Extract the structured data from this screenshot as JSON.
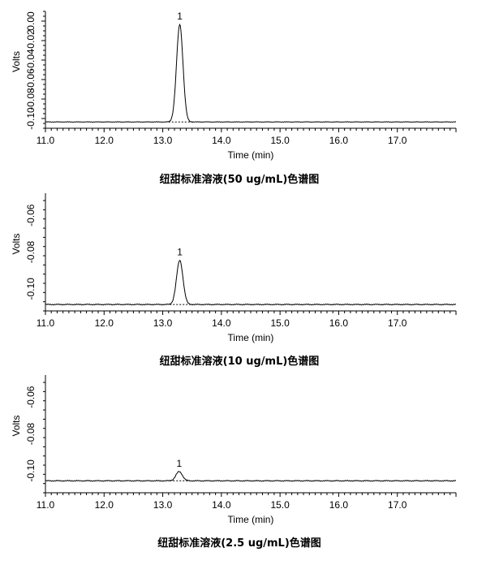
{
  "chart_data": [
    {
      "type": "line",
      "title": "纽甜标准溶液(50 ug/mL)色谱图",
      "xlabel": "Time (min)",
      "ylabel": "Volts",
      "xlim": [
        11.0,
        18.0
      ],
      "ylim": [
        -0.11,
        0.01
      ],
      "x_ticks": [
        11.0,
        12.0,
        13.0,
        14.0,
        15.0,
        16.0,
        17.0
      ],
      "x_tick_labels": [
        "11.0",
        "12.0",
        "13.0",
        "14.0",
        "15.0",
        "16.0",
        "17.0"
      ],
      "y_ticks": [
        -0.1,
        -0.08,
        -0.06,
        -0.04,
        -0.02,
        0.0
      ],
      "y_tick_labels": [
        "-0.10",
        "-0.08",
        "-0.06",
        "-0.04",
        "-0.02",
        "0.00"
      ],
      "baseline": -0.1035,
      "peaks": [
        {
          "label": "1",
          "x": 13.29,
          "y": -0.0035,
          "width": 0.055,
          "base_start": 13.1,
          "base_end": 13.52
        }
      ],
      "grid": false,
      "legend": "none"
    },
    {
      "type": "line",
      "title": "纽甜标准溶液(10 ug/mL)色谱图",
      "xlabel": "Time (min)",
      "ylabel": "Volts",
      "xlim": [
        11.0,
        18.0
      ],
      "ylim": [
        -0.112,
        -0.048
      ],
      "x_ticks": [
        11.0,
        12.0,
        13.0,
        14.0,
        15.0,
        16.0,
        17.0
      ],
      "x_tick_labels": [
        "11.0",
        "12.0",
        "13.0",
        "14.0",
        "15.0",
        "16.0",
        "17.0"
      ],
      "y_ticks": [
        -0.1,
        -0.08,
        -0.06
      ],
      "y_tick_labels": [
        "-0.10",
        "-0.08",
        "-0.06"
      ],
      "baseline": -0.1085,
      "peaks": [
        {
          "label": "1",
          "x": 13.29,
          "y": -0.0845,
          "width": 0.055,
          "base_start": 13.12,
          "base_end": 13.52
        }
      ],
      "grid": false,
      "legend": "none"
    },
    {
      "type": "line",
      "title": "纽甜标准溶液(2.5 ug/mL)色谱图",
      "xlabel": "Time (min)",
      "ylabel": "Volts",
      "xlim": [
        11.0,
        18.0
      ],
      "ylim": [
        -0.112,
        -0.048
      ],
      "x_ticks": [
        11.0,
        12.0,
        13.0,
        14.0,
        15.0,
        16.0,
        17.0
      ],
      "x_tick_labels": [
        "11.0",
        "12.0",
        "13.0",
        "14.0",
        "15.0",
        "16.0",
        "17.0"
      ],
      "y_ticks": [
        -0.1,
        -0.08,
        -0.06
      ],
      "y_tick_labels": [
        "-0.10",
        "-0.08",
        "-0.06"
      ],
      "baseline": -0.1055,
      "peaks": [
        {
          "label": "1",
          "x": 13.28,
          "y": -0.1005,
          "width": 0.055,
          "base_start": 13.12,
          "base_end": 13.45
        }
      ],
      "grid": false,
      "legend": "none"
    }
  ]
}
